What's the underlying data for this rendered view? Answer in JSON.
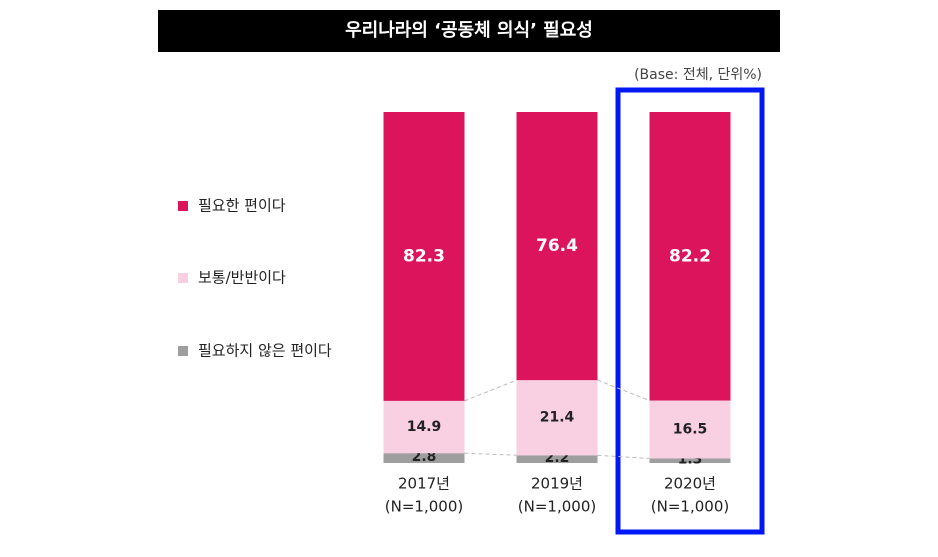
{
  "chart_data": {
    "type": "stacked-bar",
    "title": "우리나라의 ‘공동체 의식’ 필요성",
    "note": "(Base: 전체, 단위%)",
    "categories": [
      "2017년",
      "2019년",
      "2020년"
    ],
    "category_sublabels": [
      "(N=1,000)",
      "(N=1,000)",
      "(N=1,000)"
    ],
    "series": [
      {
        "name": "필요한 편이다",
        "color": "#dc145c",
        "values": [
          82.3,
          76.4,
          82.2
        ]
      },
      {
        "name": "보통/반반이다",
        "color": "#f9d0e2",
        "values": [
          14.9,
          21.4,
          16.5
        ]
      },
      {
        "name": "필요하지 않은 편이다",
        "color": "#9e9e9e",
        "values": [
          2.8,
          2.2,
          1.3
        ]
      }
    ]
  }
}
